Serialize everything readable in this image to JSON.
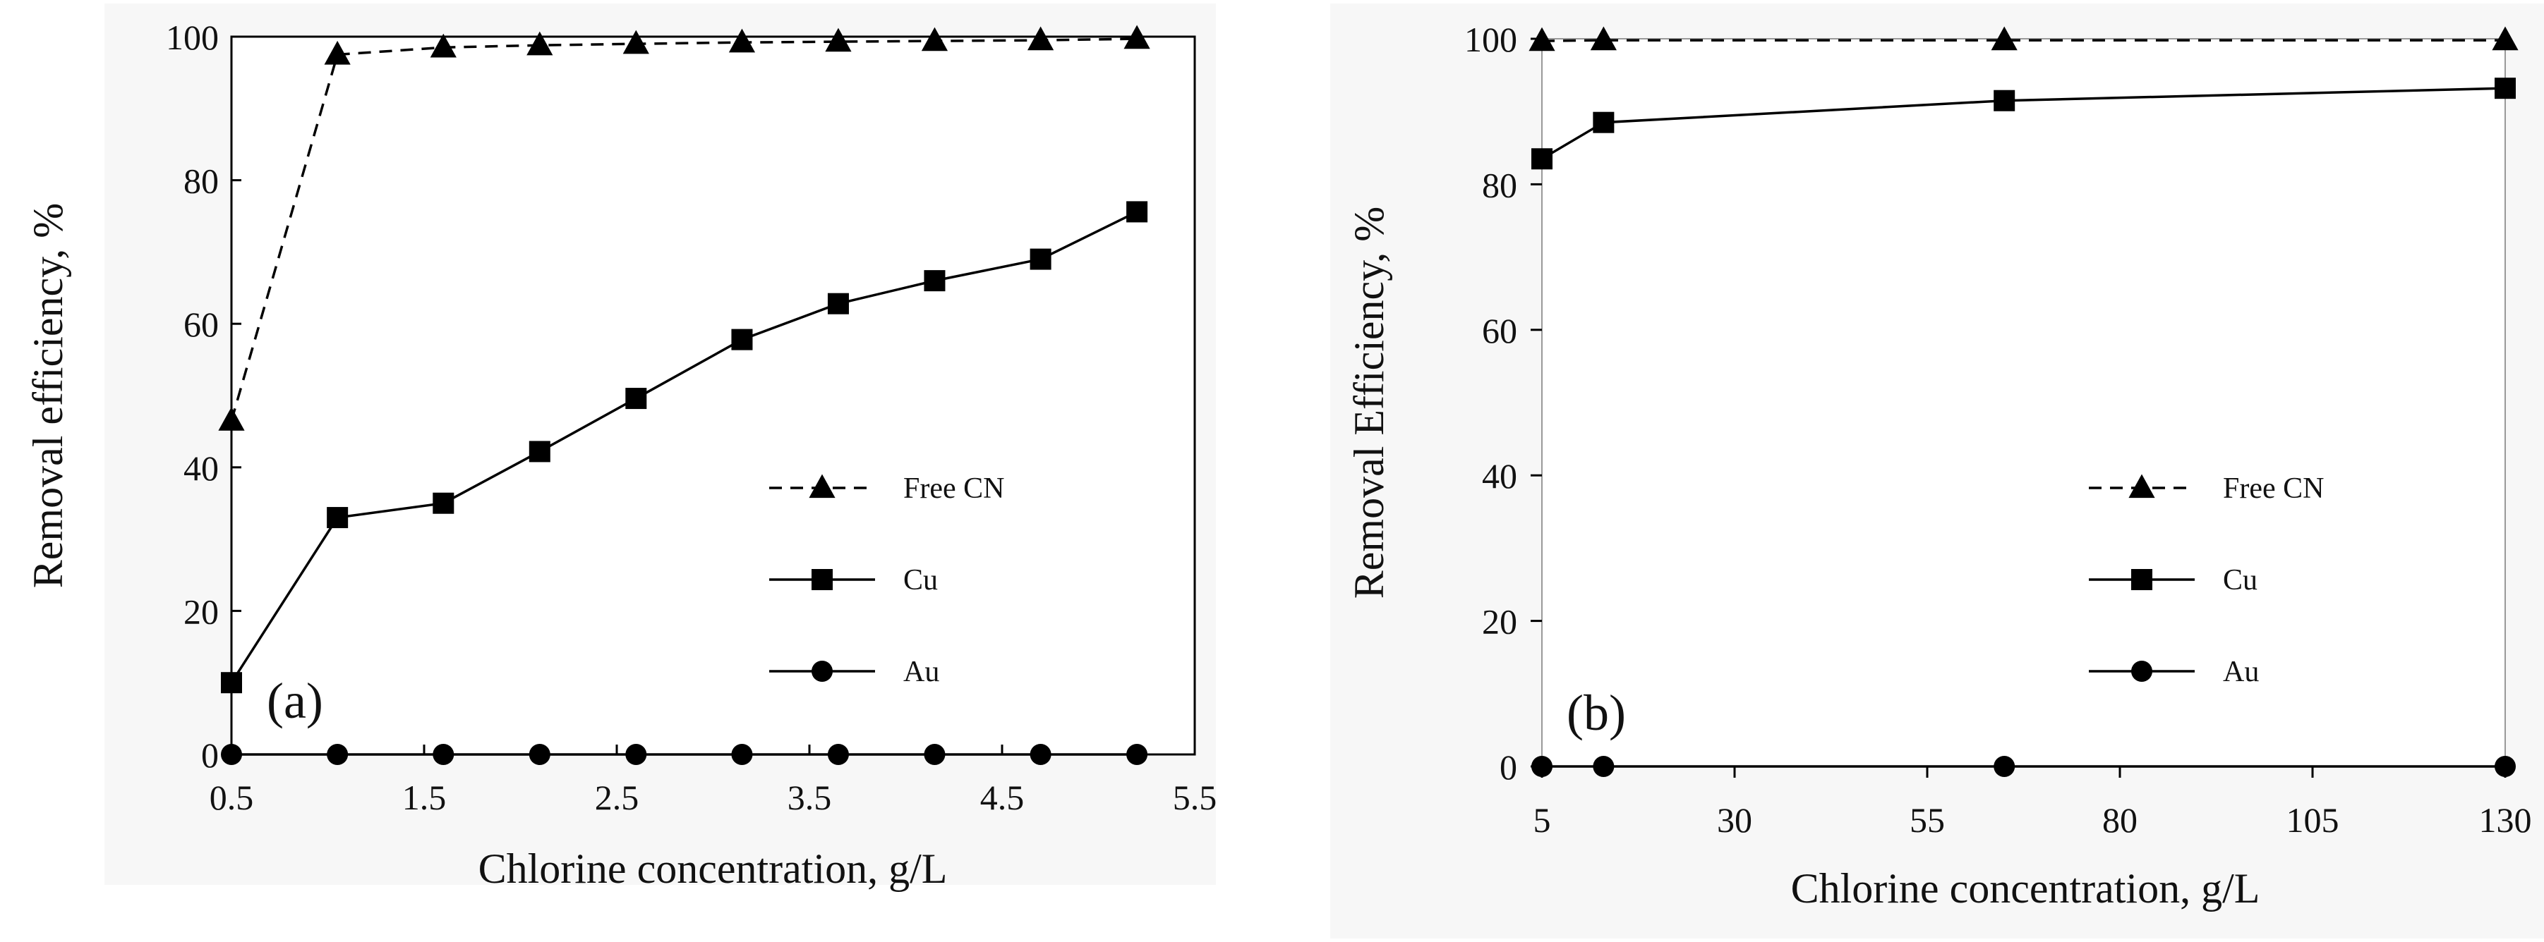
{
  "chart_data": [
    {
      "type": "line",
      "panel_label": "(a)",
      "xlabel": "Chlorine concentration,  g/L",
      "ylabel": "Removal efficiency,  %",
      "xlim": [
        0.5,
        5.5
      ],
      "ylim": [
        0,
        100
      ],
      "xticks": [
        0.5,
        1.5,
        2.5,
        3.5,
        4.5,
        5.5
      ],
      "xtick_labels": [
        "0.5",
        "1.5",
        "2.5",
        "3.5",
        "4.5",
        "5.5"
      ],
      "yticks": [
        0,
        20,
        40,
        60,
        80,
        100
      ],
      "ytick_labels": [
        "0",
        "20",
        "40",
        "60",
        "80",
        "100"
      ],
      "legend_position": "right-middle",
      "series": [
        {
          "name": "Free CN",
          "marker": "triangle",
          "dash": true,
          "x": [
            0.5,
            1.05,
            1.6,
            2.1,
            2.6,
            3.15,
            3.65,
            4.15,
            4.7,
            5.2
          ],
          "y": [
            46.5,
            97.5,
            98.5,
            98.8,
            99.0,
            99.2,
            99.3,
            99.4,
            99.5,
            99.7
          ]
        },
        {
          "name": "Cu",
          "marker": "square",
          "dash": false,
          "x": [
            0.5,
            1.05,
            1.6,
            2.1,
            2.6,
            3.15,
            3.65,
            4.15,
            4.7,
            5.2
          ],
          "y": [
            10,
            33,
            35,
            42.2,
            49.6,
            57.8,
            62.8,
            66,
            69,
            75.6
          ]
        },
        {
          "name": "Au",
          "marker": "circle",
          "dash": false,
          "x": [
            0.5,
            1.05,
            1.6,
            2.1,
            2.6,
            3.15,
            3.65,
            4.15,
            4.7,
            5.2
          ],
          "y": [
            0,
            0,
            0,
            0,
            0,
            0,
            0,
            0,
            0,
            0
          ]
        }
      ]
    },
    {
      "type": "line",
      "panel_label": "(b)",
      "xlabel": "Chlorine concentration,  g/L",
      "ylabel": "Removal Efficiency,  %",
      "xlim": [
        5,
        130
      ],
      "ylim": [
        0,
        100
      ],
      "xticks": [
        5,
        30,
        55,
        80,
        105,
        130
      ],
      "xtick_labels": [
        "5",
        "30",
        "55",
        "80",
        "105",
        "130"
      ],
      "yticks": [
        0,
        20,
        40,
        60,
        80,
        100
      ],
      "ytick_labels": [
        "0",
        "20",
        "40",
        "60",
        "80",
        "100"
      ],
      "legend_position": "right-middle",
      "series": [
        {
          "name": "Free CN",
          "marker": "triangle",
          "dash": true,
          "x": [
            5,
            13,
            65,
            130
          ],
          "y": [
            99.7,
            99.8,
            99.8,
            99.8
          ]
        },
        {
          "name": "Cu",
          "marker": "square",
          "dash": false,
          "x": [
            5,
            13,
            65,
            130
          ],
          "y": [
            83.5,
            88.5,
            91.5,
            93.2
          ]
        },
        {
          "name": "Au",
          "marker": "circle",
          "dash": false,
          "x": [
            5,
            13,
            65,
            130
          ],
          "y": [
            0,
            0,
            0,
            0
          ]
        }
      ]
    }
  ]
}
